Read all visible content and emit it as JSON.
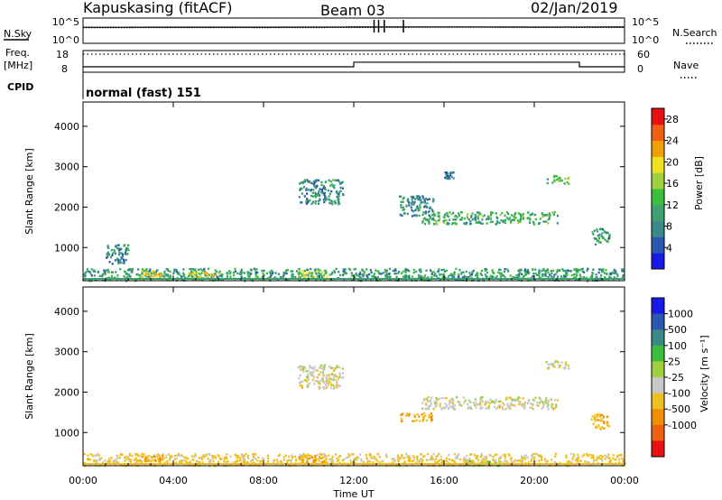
{
  "header": {
    "station": "Kapuskasing (fitACF)",
    "beam": "Beam 03",
    "date": "02/Jan/2019"
  },
  "left_labels": {
    "nsky": "N.Sky",
    "nsky_max": "10^5",
    "nsky_min": "10^0",
    "freq_line1": "Freq.",
    "freq_line2": "[MHz]",
    "freq_max": "18",
    "freq_min": "8",
    "cpid": "CPID"
  },
  "right_labels": {
    "nsearch": "N.Search",
    "nsearch_max": "10^5",
    "nsearch_min": "10^0",
    "nave": "Nave",
    "nave_max": "60",
    "nave_min": "0"
  },
  "mode_text": "normal (fast) 151",
  "colors": {
    "power_scale": [
      "#1a1ae6",
      "#2a58b0",
      "#3b8a8a",
      "#3fa070",
      "#3cbf3c",
      "#a0d040",
      "#f0e020",
      "#f0a000",
      "#f06010",
      "#e81010"
    ],
    "velocity_scale": [
      "#1a1ae6",
      "#2a58b0",
      "#3b8a8a",
      "#3cbf3c",
      "#a0d040",
      "#c8c8c8",
      "#f0c020",
      "#f09000",
      "#f06010",
      "#e81010"
    ],
    "ground": "#c8c8c8"
  },
  "chart_data": [
    {
      "type": "line",
      "panel": "N.Sky / N.Search",
      "ylabel": "N.Sky",
      "ylabel_right": "N.Search",
      "yscale": "log",
      "ylim": [
        1,
        100000
      ],
      "x": [
        "00:00",
        "04:00",
        "08:00",
        "12:00",
        "16:00",
        "20:00",
        "00:00"
      ],
      "series": [
        {
          "name": "N.Sky",
          "values": [
            1500,
            1600,
            1550,
            1700,
            1800,
            1650,
            1700
          ]
        },
        {
          "name": "N.Search",
          "values": [
            1200,
            1300,
            1250,
            1350,
            1500,
            1400,
            1350
          ]
        }
      ]
    },
    {
      "type": "line",
      "panel": "Freq. / Nave",
      "ylabel": "Freq. [MHz]",
      "ylabel_right": "Nave",
      "ylim": [
        8,
        18
      ],
      "ylim_right": [
        0,
        60
      ],
      "series": [
        {
          "name": "Freq.",
          "steps": [
            [
              "00:00",
              10.5
            ],
            [
              "12:00",
              12.6
            ],
            [
              "22:00",
              10.5
            ],
            [
              "24:00",
              10.5
            ]
          ]
        },
        {
          "name": "Nave",
          "steps": [
            [
              "00:00",
              50
            ],
            [
              "24:00",
              50
            ]
          ]
        }
      ]
    },
    {
      "type": "heatmap",
      "panel": "Power",
      "xlabel": "Time UT",
      "ylabel": "Slant Range [km]",
      "colorbar_label": "Power [dB]",
      "x_ticks": [
        "00:00",
        "04:00",
        "08:00",
        "12:00",
        "16:00",
        "20:00",
        "00:00"
      ],
      "xlim_hours": [
        0,
        24
      ],
      "ylim": [
        180,
        4600
      ],
      "y_ticks": [
        1000,
        2000,
        3000,
        4000
      ],
      "colorbar_ticks": [
        4,
        8,
        12,
        16,
        20,
        24,
        28
      ],
      "colorbar_range": [
        0,
        30
      ],
      "regions": [
        {
          "t": [
            0,
            24
          ],
          "r": [
            200,
            500
          ],
          "value": 10
        },
        {
          "t": [
            2.5,
            3.5
          ],
          "r": [
            220,
            450
          ],
          "value": 20
        },
        {
          "t": [
            4.5,
            6
          ],
          "r": [
            220,
            400
          ],
          "value": 18
        },
        {
          "t": [
            9.5,
            10.8
          ],
          "r": [
            250,
            450
          ],
          "value": 17
        },
        {
          "t": [
            1,
            2
          ],
          "r": [
            600,
            1100
          ],
          "value": 8
        },
        {
          "t": [
            9.5,
            11.5
          ],
          "r": [
            2100,
            2700
          ],
          "value": 8
        },
        {
          "t": [
            15,
            21
          ],
          "r": [
            1600,
            1900
          ],
          "value": 11
        },
        {
          "t": [
            20.5,
            21.5
          ],
          "r": [
            2600,
            2800
          ],
          "value": 14
        },
        {
          "t": [
            22.5,
            23.3
          ],
          "r": [
            1100,
            1500
          ],
          "value": 10
        },
        {
          "t": [
            14,
            15.5
          ],
          "r": [
            1800,
            2300
          ],
          "value": 8
        },
        {
          "t": [
            16,
            16.4
          ],
          "r": [
            2700,
            2900
          ],
          "value": 6
        }
      ]
    },
    {
      "type": "heatmap",
      "panel": "Velocity",
      "xlabel": "Time UT",
      "ylabel": "Slant Range [km]",
      "colorbar_label": "Velocity [m s⁻¹]",
      "x_ticks": [
        "00:00",
        "04:00",
        "08:00",
        "12:00",
        "16:00",
        "20:00",
        "00:00"
      ],
      "xlim_hours": [
        0,
        24
      ],
      "ylim": [
        180,
        4600
      ],
      "y_ticks": [
        1000,
        2000,
        3000,
        4000
      ],
      "colorbar_ticks": [
        "1000",
        "500",
        "100",
        "25",
        "-25",
        "-100",
        "-500",
        "-1000"
      ],
      "regions": [
        {
          "t": [
            0,
            24
          ],
          "r": [
            200,
            500
          ],
          "value": -40
        },
        {
          "t": [
            2.5,
            3.5
          ],
          "r": [
            220,
            450
          ],
          "value": -110
        },
        {
          "t": [
            9.5,
            10.8
          ],
          "r": [
            250,
            450
          ],
          "value": -110
        },
        {
          "t": [
            9.5,
            11.5
          ],
          "r": [
            2100,
            2700
          ],
          "value": 0
        },
        {
          "t": [
            15,
            21
          ],
          "r": [
            1600,
            1900
          ],
          "value": 0
        },
        {
          "t": [
            20.5,
            21.5
          ],
          "r": [
            2600,
            2800
          ],
          "value": 0
        },
        {
          "t": [
            22.5,
            23.3
          ],
          "r": [
            1100,
            1500
          ],
          "value": -80
        },
        {
          "t": [
            14,
            15.5
          ],
          "r": [
            1300,
            1500
          ],
          "value": -100
        },
        {
          "t": [
            17,
            18.5
          ],
          "r": [
            200,
            320
          ],
          "value": 60
        }
      ]
    }
  ]
}
